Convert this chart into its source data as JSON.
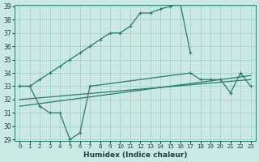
{
  "xlabel": "Humidex (Indice chaleur)",
  "x_ticks": [
    0,
    1,
    2,
    3,
    4,
    5,
    6,
    7,
    8,
    9,
    10,
    11,
    12,
    13,
    14,
    15,
    16,
    17,
    18,
    19,
    20,
    21,
    22,
    23
  ],
  "upper_x": [
    0,
    1,
    2,
    3,
    4,
    5,
    6,
    7,
    8,
    9,
    10,
    11,
    12,
    13,
    14,
    15,
    16,
    17
  ],
  "upper_y": [
    33.0,
    33.0,
    33.5,
    34.0,
    34.5,
    35.0,
    35.5,
    36.0,
    36.5,
    37.0,
    37.0,
    37.5,
    38.5,
    38.5,
    38.8,
    39.0,
    39.2,
    35.5
  ],
  "lower_x": [
    0,
    1,
    2,
    3,
    4,
    5,
    6,
    7,
    17,
    18,
    19,
    20,
    21,
    22,
    23
  ],
  "lower_y": [
    33.0,
    33.0,
    31.5,
    31.0,
    31.0,
    29.0,
    29.5,
    33.0,
    34.0,
    33.5,
    33.5,
    33.5,
    32.5,
    34.0,
    33.0
  ],
  "trend1_x": [
    0,
    23
  ],
  "trend1_y": [
    31.5,
    33.8
  ],
  "trend2_x": [
    0,
    23
  ],
  "trend2_y": [
    32.0,
    33.5
  ],
  "line_color": "#2a7a6a",
  "bg_color": "#cce8e4",
  "grid_color": "#9ecece",
  "ylim": [
    29,
    39
  ],
  "yticks": [
    29,
    30,
    31,
    32,
    33,
    34,
    35,
    36,
    37,
    38,
    39
  ]
}
